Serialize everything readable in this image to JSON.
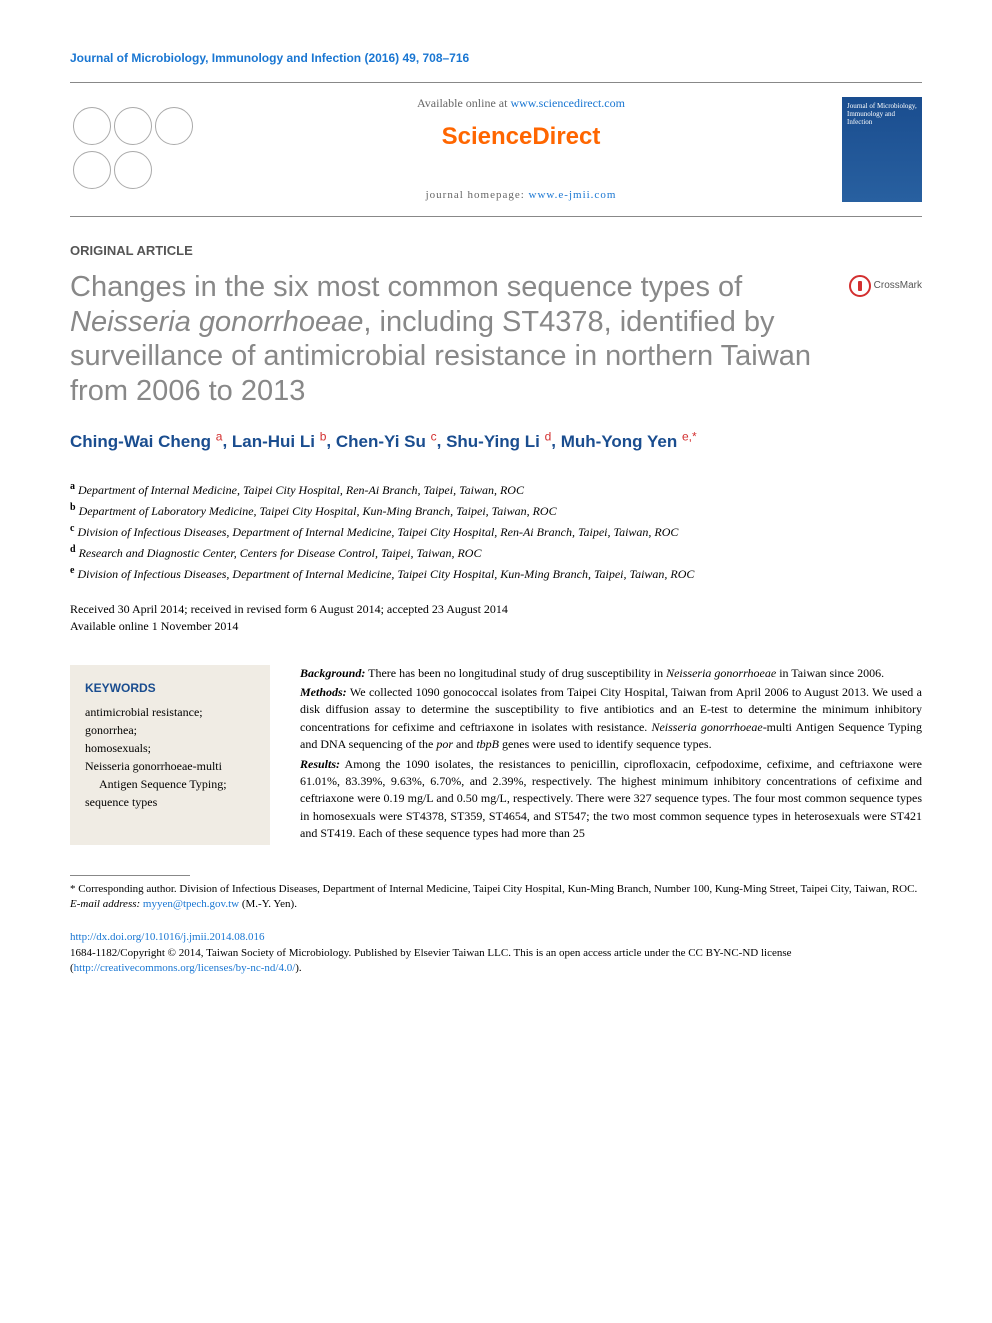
{
  "journal_header": "Journal of Microbiology, Immunology and Infection (2016) 49, 708–716",
  "banner": {
    "available_prefix": "Available online at ",
    "available_link": "www.sciencedirect.com",
    "brand": "ScienceDirect",
    "homepage_prefix": "journal homepage: ",
    "homepage_link": "www.e-jmii.com",
    "cover_title": "Journal of\nMicrobiology,\nImmunology\nand Infection"
  },
  "article_type": "ORIGINAL ARTICLE",
  "crossmark_label": "CrossMark",
  "title_parts": {
    "p1": "Changes in the six most common sequence types of ",
    "italic": "Neisseria gonorrhoeae",
    "p2": ", including ST4378, identified by surveillance of antimicrobial resistance in northern Taiwan from 2006 to 2013"
  },
  "authors": [
    {
      "name": "Ching-Wai Cheng",
      "aff": "a"
    },
    {
      "name": "Lan-Hui Li",
      "aff": "b"
    },
    {
      "name": "Chen-Yi Su",
      "aff": "c"
    },
    {
      "name": "Shu-Ying Li",
      "aff": "d"
    },
    {
      "name": "Muh-Yong Yen",
      "aff": "e,",
      "star": "*"
    }
  ],
  "affiliations": [
    {
      "sup": "a",
      "text": "Department of Internal Medicine, Taipei City Hospital, Ren-Ai Branch, Taipei, Taiwan, ROC"
    },
    {
      "sup": "b",
      "text": "Department of Laboratory Medicine, Taipei City Hospital, Kun-Ming Branch, Taipei, Taiwan, ROC"
    },
    {
      "sup": "c",
      "text": "Division of Infectious Diseases, Department of Internal Medicine, Taipei City Hospital, Ren-Ai Branch, Taipei, Taiwan, ROC"
    },
    {
      "sup": "d",
      "text": "Research and Diagnostic Center, Centers for Disease Control, Taipei, Taiwan, ROC"
    },
    {
      "sup": "e",
      "text": "Division of Infectious Diseases, Department of Internal Medicine, Taipei City Hospital, Kun-Ming Branch, Taipei, Taiwan, ROC"
    }
  ],
  "dates_line1": "Received 30 April 2014; received in revised form 6 August 2014; accepted 23 August 2014",
  "dates_line2": "Available online 1 November 2014",
  "keywords_heading": "KEYWORDS",
  "keywords": [
    "antimicrobial resistance;",
    "gonorrhea;",
    "homosexuals;",
    "Neisseria gonorrhoeae-multi Antigen Sequence Typing;",
    "sequence types"
  ],
  "keywords_italic_idx": 3,
  "abstract": {
    "background_label": "Background:",
    "background_text": " There has been no longitudinal study of drug susceptibility in ",
    "background_italic": "Neisseria gonorrhoeae",
    "background_tail": " in Taiwan since 2006.",
    "methods_label": "Methods:",
    "methods_text": " We collected 1090 gonococcal isolates from Taipei City Hospital, Taiwan from April 2006 to August 2013. We used a disk diffusion assay to determine the susceptibility to five antibiotics and an E-test to determine the minimum inhibitory concentrations for cefixime and ceftriaxone in isolates with resistance. ",
    "methods_italic": "Neisseria gonorrhoeae",
    "methods_mid": "-multi Antigen Sequence Typing and DNA sequencing of the ",
    "methods_italic2": "por",
    "methods_and": " and ",
    "methods_italic3": "tbpB",
    "methods_tail": " genes were used to identify sequence types.",
    "results_label": "Results:",
    "results_text": " Among the 1090 isolates, the resistances to penicillin, ciprofloxacin, cefpodoxime, cefixime, and ceftriaxone were 61.01%, 83.39%, 9.63%, 6.70%, and 2.39%, respectively. The highest minimum inhibitory concentrations of cefixime and ceftriaxone were 0.19 mg/L and 0.50 mg/L, respectively. There were 327 sequence types. The four most common sequence types in homosexuals were ST4378, ST359, ST4654, and ST547; the two most common sequence types in heterosexuals were ST421 and ST419. Each of these sequence types had more than 25"
  },
  "corresponding": {
    "star": "*",
    "label": " Corresponding author. ",
    "text": "Division of Infectious Diseases, Department of Internal Medicine, Taipei City Hospital, Kun-Ming Branch, Number 100, Kung-Ming Street, Taipei City, Taiwan, ROC."
  },
  "email": {
    "label": "E-mail address: ",
    "address": "myyen@tpech.gov.tw",
    "suffix": " (M.-Y. Yen)."
  },
  "footer": {
    "doi": "http://dx.doi.org/10.1016/j.jmii.2014.08.016",
    "copyright": "1684-1182/Copyright © 2014, Taiwan Society of Microbiology. Published by Elsevier Taiwan LLC. This is an open access article under the CC BY-NC-ND license (",
    "cc_link": "http://creativecommons.org/licenses/by-nc-nd/4.0/",
    "close": ")."
  },
  "colors": {
    "link": "#1976d2",
    "title_gray": "#888888",
    "author_blue": "#1a4d8f",
    "accent_red": "#d32f2f",
    "brand_orange": "#ff6600",
    "keywords_bg": "#f0ece4"
  }
}
